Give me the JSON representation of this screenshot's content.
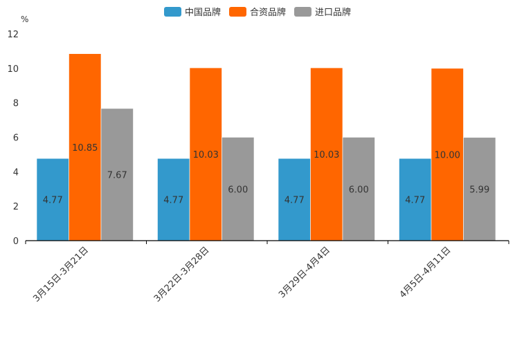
{
  "chart_data": {
    "type": "bar",
    "ylabel": "%",
    "ylim": [
      0,
      12
    ],
    "yticks": [
      "0",
      "2",
      "4",
      "6",
      "8",
      "10",
      "12"
    ],
    "categories": [
      "3月15日-3月21日",
      "3月22日-3月28日",
      "3月29日-4月4日",
      "4月5日-4月11日"
    ],
    "series": [
      {
        "name": "中国品牌",
        "color": "#3399cc",
        "values": [
          4.77,
          4.77,
          4.77,
          4.77
        ],
        "labels": [
          "4.77",
          "4.77",
          "4.77",
          "4.77"
        ]
      },
      {
        "name": "合资品牌",
        "color": "#ff6600",
        "values": [
          10.85,
          10.03,
          10.03,
          10.0
        ],
        "labels": [
          "10.85",
          "10.03",
          "10.03",
          "10.00"
        ]
      },
      {
        "name": "进口品牌",
        "color": "#999999",
        "values": [
          7.67,
          6.0,
          6.0,
          5.99
        ],
        "labels": [
          "7.67",
          "6.00",
          "6.00",
          "5.99"
        ]
      }
    ],
    "legend_position": "top-center"
  }
}
